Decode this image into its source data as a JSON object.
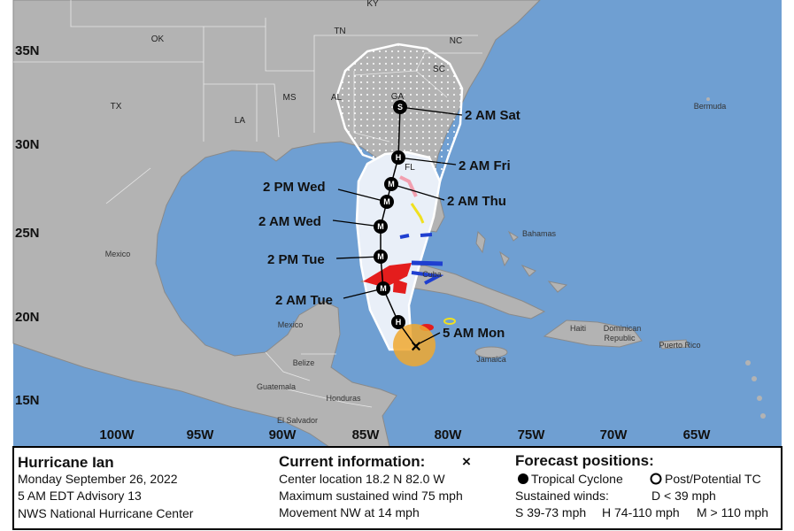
{
  "map": {
    "lat_labels": [
      "35N",
      "30N",
      "25N",
      "20N",
      "15N"
    ],
    "lon_labels": [
      "100W",
      "95W",
      "90W",
      "85W",
      "80W",
      "75W",
      "70W",
      "65W"
    ],
    "states": [
      "KY",
      "TN",
      "NC",
      "OK",
      "SC",
      "GA",
      "MS",
      "AL",
      "TX",
      "LA",
      "FL"
    ],
    "places": [
      "Mexico",
      "Mexico",
      "Bermuda",
      "Bahamas",
      "Cuba",
      "Jamaica",
      "Haiti",
      "Dominican",
      "Republic",
      "Puerto Rico",
      "Belize",
      "Guatemala",
      "Honduras",
      "El Salvador"
    ],
    "forecast_points": [
      {
        "label": "5 AM Mon"
      },
      {
        "label": "2 AM Tue",
        "marker": "M"
      },
      {
        "label": "2 PM Tue",
        "marker": "M"
      },
      {
        "label": "2 AM Wed",
        "marker": "M"
      },
      {
        "label": "2 PM Wed",
        "marker": "M"
      },
      {
        "label": "2 AM Thu",
        "marker": "M"
      },
      {
        "label": "2 AM Fri",
        "marker": "H"
      },
      {
        "label": "2 AM Sat",
        "marker": "S"
      }
    ],
    "extra_marker": "H"
  },
  "legend": {
    "storm": {
      "title": "Hurricane Ian",
      "date": "Monday September 26, 2022",
      "advisory": "5 AM EDT Advisory 13",
      "source": "NWS National Hurricane Center"
    },
    "current": {
      "title": "Current information:",
      "symbol": "×",
      "lines": [
        "Center location 18.2 N 82.0 W",
        "Maximum sustained wind 75 mph",
        "Movement NW at 14 mph"
      ]
    },
    "forecast": {
      "title": "Forecast positions:",
      "tropical": "Tropical Cyclone",
      "post": "Post/Potential TC",
      "winds_title": "Sustained winds:",
      "d": "D < 39 mph",
      "s": "S 39-73 mph",
      "h": "H 74-110 mph",
      "m": "M > 110 mph"
    }
  }
}
